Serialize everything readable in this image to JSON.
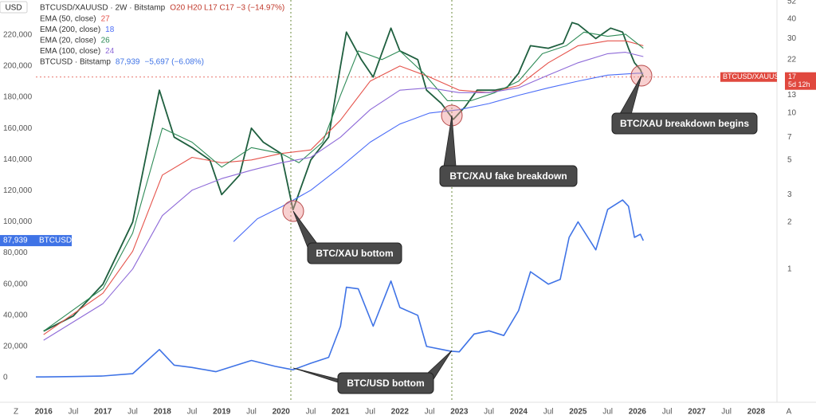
{
  "chart_data": {
    "type": "line",
    "currency_label": "USD",
    "header": {
      "symbol": "BTCUSD/XAUUSD · 2W · Bitstamp",
      "ohlc": "O20 H20 L17 C17 −3 (−14.97%)"
    },
    "xlim": [
      2015.87,
      2028.35
    ],
    "xticks": [
      {
        "value": 2016,
        "label": "2016"
      },
      {
        "value": 2016.5,
        "label": "Jul"
      },
      {
        "value": 2017,
        "label": "2017"
      },
      {
        "value": 2017.5,
        "label": "Jul"
      },
      {
        "value": 2018,
        "label": "2018"
      },
      {
        "value": 2018.5,
        "label": "Jul"
      },
      {
        "value": 2019,
        "label": "2019"
      },
      {
        "value": 2019.5,
        "label": "Jul"
      },
      {
        "value": 2020,
        "label": "2020"
      },
      {
        "value": 2020.5,
        "label": "Jul"
      },
      {
        "value": 2021,
        "label": "2021"
      },
      {
        "value": 2021.5,
        "label": "Jul"
      },
      {
        "value": 2022,
        "label": "2022"
      },
      {
        "value": 2022.5,
        "label": "Jul"
      },
      {
        "value": 2023,
        "label": "2023"
      },
      {
        "value": 2023.5,
        "label": "Jul"
      },
      {
        "value": 2024,
        "label": "2024"
      },
      {
        "value": 2024.5,
        "label": "Jul"
      },
      {
        "value": 2025,
        "label": "2025"
      },
      {
        "value": 2025.5,
        "label": "Jul"
      },
      {
        "value": 2026,
        "label": "2026"
      },
      {
        "value": 2026.5,
        "label": "Jul"
      },
      {
        "value": 2027,
        "label": "2027"
      },
      {
        "value": 2027.5,
        "label": "Jul"
      },
      {
        "value": 2028,
        "label": "2028"
      }
    ],
    "ylim": [
      -15860,
      242450
    ],
    "yticks": [
      0,
      {
        "value": 20000,
        "label": "20,000"
      },
      {
        "value": 40000,
        "label": "40,000"
      },
      {
        "value": 60000,
        "label": "60,000"
      },
      {
        "value": 80000,
        "label": "80,000"
      },
      {
        "value": 100000,
        "label": "100,000"
      },
      {
        "value": 120000,
        "label": "120,000"
      },
      {
        "value": 140000,
        "label": "140,000"
      },
      {
        "value": 160000,
        "label": "160,000"
      },
      {
        "value": 180000,
        "label": "180,000"
      },
      {
        "value": 200000,
        "label": "200,000"
      },
      {
        "value": 220000,
        "label": "220,000"
      }
    ],
    "y2lim": [
      0.14,
      53
    ],
    "y2_log": true,
    "y2ticks": [
      52,
      40,
      30,
      22,
      13,
      10,
      7,
      5,
      3,
      2,
      1
    ],
    "series": [
      {
        "name": "BTCUSD/XAUUSD",
        "color": "#1f5f3f",
        "axis": "y2",
        "x": [
          2016.0,
          2016.5,
          2017.0,
          2017.5,
          2017.95,
          2018.2,
          2018.5,
          2018.8,
          2019.0,
          2019.3,
          2019.5,
          2019.7,
          2020.0,
          2020.2,
          2020.5,
          2020.8,
          2021.0,
          2021.1,
          2021.35,
          2021.55,
          2021.85,
          2022.0,
          2022.3,
          2022.45,
          2022.7,
          2022.9,
          2023.1,
          2023.3,
          2023.6,
          2023.8,
          2024.0,
          2024.2,
          2024.5,
          2024.75,
          2024.9,
          2025.0,
          2025.3,
          2025.55,
          2025.75,
          2025.85,
          2025.95,
          2026.05,
          2026.1
        ],
        "values": [
          0.4,
          0.5,
          0.8,
          2,
          14,
          7,
          6,
          5,
          3,
          4,
          8,
          6.5,
          5.5,
          2.4,
          5,
          7,
          20,
          33,
          22,
          17,
          35,
          25,
          22,
          14,
          11.5,
          9.1,
          11,
          14,
          14,
          14.5,
          18,
          27,
          26,
          28,
          38,
          37,
          30,
          35,
          33,
          26,
          21,
          19,
          17
        ]
      },
      {
        "name": "EMA (50, close)",
        "last_label": "27",
        "color": "#e5534b",
        "axis": "y2",
        "x": [
          2016,
          2017,
          2017.5,
          2018,
          2018.5,
          2019,
          2019.5,
          2020,
          2020.5,
          2021,
          2021.5,
          2022,
          2022.5,
          2023,
          2023.5,
          2024,
          2024.5,
          2025,
          2025.5,
          2025.8,
          2026.1
        ],
        "values": [
          0.38,
          0.7,
          1.3,
          4,
          5.2,
          4.8,
          5,
          5.5,
          5.8,
          9,
          16,
          20,
          17,
          14,
          13.5,
          15,
          21,
          27,
          29,
          29,
          27
        ]
      },
      {
        "name": "EMA (200, close)",
        "last_label": "18",
        "color": "#4a6cf7",
        "axis": "y2",
        "x": [
          2019.2,
          2019.6,
          2020.0,
          2020.5,
          2021.0,
          2021.5,
          2022.0,
          2022.5,
          2023.0,
          2023.5,
          2024.0,
          2024.5,
          2025.0,
          2025.5,
          2026.0,
          2026.1
        ],
        "values": [
          1.5,
          2.1,
          2.5,
          3.2,
          4.5,
          6.5,
          8.5,
          10,
          10.5,
          11.5,
          13,
          14.5,
          16,
          17.5,
          18,
          18
        ]
      },
      {
        "name": "EMA (20, close)",
        "last_label": "26",
        "color": "#2e8b57",
        "axis": "y2",
        "x": [
          2016,
          2017,
          2017.5,
          2018.0,
          2018.5,
          2019,
          2019.5,
          2020,
          2020.3,
          2020.7,
          2021,
          2021.3,
          2021.7,
          2022,
          2022.4,
          2022.8,
          2023.2,
          2023.6,
          2024,
          2024.4,
          2024.8,
          2025.1,
          2025.5,
          2025.8,
          2026.1
        ],
        "values": [
          0.4,
          0.75,
          1.7,
          8,
          6.5,
          4.5,
          6,
          5.5,
          4.8,
          6.5,
          13,
          25,
          22,
          25,
          18,
          12,
          12,
          13.5,
          16,
          24,
          27,
          33,
          31,
          32,
          26
        ]
      },
      {
        "name": "EMA (100, close)",
        "last_label": "24",
        "color": "#8e6ad8",
        "axis": "y2",
        "x": [
          2016.0,
          2017.0,
          2017.5,
          2018.0,
          2018.5,
          2019.0,
          2019.5,
          2020.0,
          2020.5,
          2021.0,
          2021.5,
          2022.0,
          2022.5,
          2023.0,
          2023.5,
          2024.0,
          2024.5,
          2025.0,
          2025.5,
          2025.8,
          2026.1
        ],
        "values": [
          0.35,
          0.6,
          1,
          2.2,
          3.2,
          3.8,
          4.3,
          4.8,
          5.2,
          7,
          10.5,
          14,
          14.5,
          13.5,
          13.5,
          14.5,
          17.5,
          21,
          24,
          24.5,
          23
        ]
      },
      {
        "name": "BTCUSD · Bitstamp",
        "last_label": "87,939",
        "change_label": "−5,697 (−6.08%)",
        "color": "#3f73e6",
        "x": [
          2015.87,
          2016.0,
          2016.5,
          2017.0,
          2017.5,
          2017.95,
          2018.2,
          2018.5,
          2018.9,
          2019.5,
          2019.9,
          2020.2,
          2020.5,
          2020.8,
          2021.0,
          2021.1,
          2021.3,
          2021.55,
          2021.85,
          2022.0,
          2022.3,
          2022.45,
          2022.85,
          2023.0,
          2023.25,
          2023.5,
          2023.75,
          2024.0,
          2024.2,
          2024.5,
          2024.7,
          2024.85,
          2025.0,
          2025.3,
          2025.5,
          2025.75,
          2025.85,
          2025.95,
          2026.05,
          2026.1
        ],
        "values": [
          400,
          400,
          650,
          1000,
          2500,
          18000,
          8000,
          6500,
          3800,
          11000,
          7200,
          5000,
          9200,
          13000,
          33000,
          58000,
          57000,
          33000,
          62000,
          45000,
          40000,
          20000,
          17000,
          16500,
          28000,
          30000,
          27000,
          43000,
          68000,
          60000,
          63000,
          90000,
          100000,
          82000,
          108000,
          114000,
          110000,
          90000,
          92000,
          87939
        ]
      }
    ],
    "price_tags": [
      {
        "name": "BTCUSD",
        "value": 87939,
        "value_label": "87,939",
        "color": "#3f73e6"
      },
      {
        "name": "BTCUSD/XAUUSD",
        "value": 17,
        "timer": "5d 12h",
        "color": "#e0483e",
        "axis": "y2"
      }
    ],
    "annotations": [
      "BTC/XAU bottom",
      "BTC/XAU fake breakdown",
      "BTC/XAU breakdown begins",
      "BTC/USD bottom"
    ],
    "axis_buttons": [
      "Z",
      "A"
    ]
  }
}
